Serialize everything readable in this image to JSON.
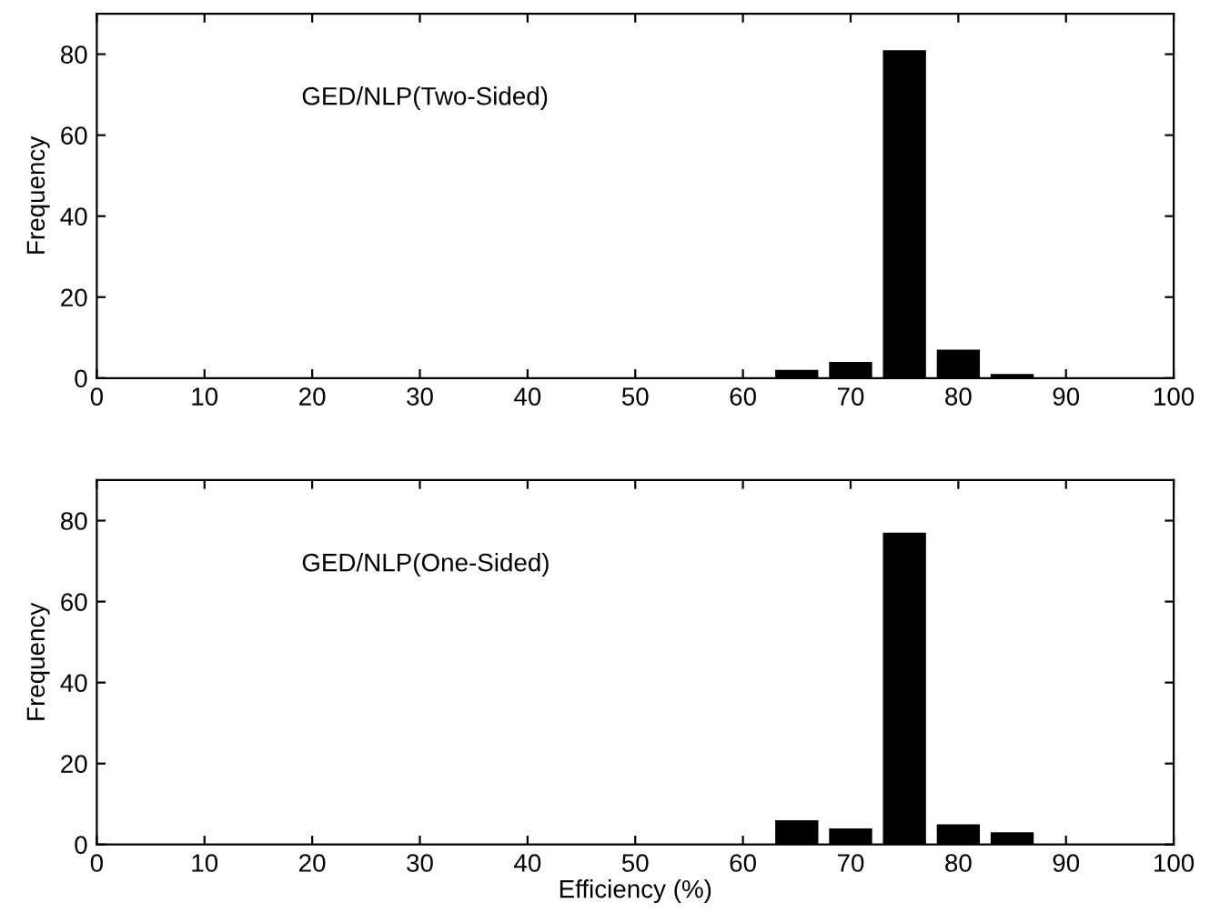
{
  "chart_data": [
    {
      "type": "histogram",
      "ylabel": "Frequency",
      "annotations": [
        "GED/NLP(Two-Sided)"
      ],
      "bins": [
        62.5,
        67.5,
        72.5,
        77.5,
        82.5,
        87.5
      ],
      "values": [
        2,
        4,
        81,
        7,
        1
      ],
      "color": "#000000",
      "xlim": [
        0,
        100
      ],
      "xticks": [
        0,
        10,
        20,
        30,
        40,
        50,
        60,
        70,
        80,
        90,
        100
      ],
      "ylim": [
        0,
        90
      ],
      "yticks": [
        0,
        20,
        40,
        60,
        80
      ]
    },
    {
      "type": "histogram",
      "xlabel": "Efficiency (%)",
      "ylabel": "Frequency",
      "annotations": [
        "GED/NLP(One-Sided)"
      ],
      "bins": [
        62.5,
        67.5,
        72.5,
        77.5,
        82.5,
        87.5
      ],
      "values": [
        6,
        4,
        77,
        5,
        3
      ],
      "color": "#000000",
      "xlim": [
        0,
        100
      ],
      "xticks": [
        0,
        10,
        20,
        30,
        40,
        50,
        60,
        70,
        80,
        90,
        100
      ],
      "ylim": [
        0,
        90
      ],
      "yticks": [
        0,
        20,
        40,
        60,
        80
      ]
    }
  ]
}
